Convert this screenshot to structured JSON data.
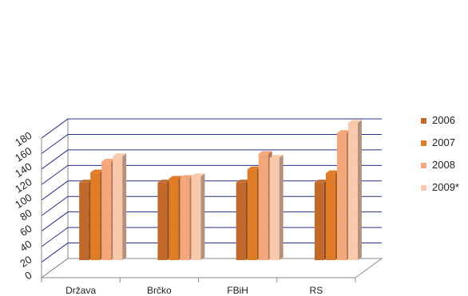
{
  "chart_data": {
    "type": "bar",
    "three_d": true,
    "title": "",
    "xlabel": "",
    "ylabel": "",
    "ylim": [
      0,
      180
    ],
    "yticks": [
      0,
      20,
      40,
      60,
      80,
      100,
      120,
      140,
      160,
      180
    ],
    "grid": true,
    "legend_position": "right",
    "categories": [
      "Država",
      "Brčko",
      "FBiH",
      "RS"
    ],
    "series": [
      {
        "name": "2006",
        "color": "#c0692a",
        "values": [
          100,
          100,
          100,
          100
        ]
      },
      {
        "name": "2007",
        "color": "#e07b28",
        "values": [
          113,
          105,
          117,
          112
        ]
      },
      {
        "name": "2008",
        "color": "#f3a77b",
        "values": [
          127,
          106,
          137,
          164
        ]
      },
      {
        "name": "2009*",
        "color": "#f9c9ab",
        "values": [
          134,
          108,
          132,
          177
        ]
      }
    ],
    "gridline_color": "#2b2f8a",
    "axis_color": "#8a8a8a"
  }
}
